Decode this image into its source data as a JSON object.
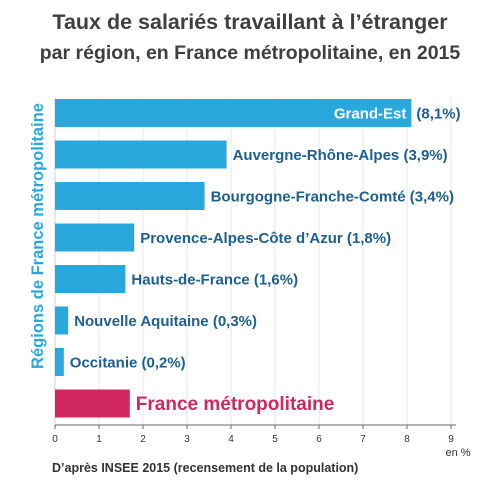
{
  "title": "Taux de salariés travaillant à l’étranger",
  "subtitle": "par région, en France métropolitaine, en 2015",
  "source": "D’après INSEE 2015 (recensement de la population)",
  "colors": {
    "bar": "#29a8dd",
    "highlight": "#d0285e",
    "label": "#1d5f8f",
    "grid": "#e4e4e4"
  },
  "chart_data": {
    "type": "bar",
    "orientation": "horizontal",
    "title": "Taux de salariés travaillant à l’étranger",
    "subtitle": "par région, en France métropolitaine, en 2015",
    "ylabel": "Régions de France métropolitaine",
    "xlabel": "en %",
    "xlim": [
      0,
      9
    ],
    "xticks": [
      "0",
      "1",
      "2",
      "3",
      "4",
      "5",
      "6",
      "7",
      "8",
      "9"
    ],
    "grid": true,
    "categories": [
      "Grand-Est",
      "Auvergne-Rhône-Alpes",
      "Bourgogne-Franche-Comté",
      "Provence-Alpes-Côte d’Azur",
      "Hauts-de-France",
      "Nouvelle Aquitaine",
      "Occitanie",
      "France métropolitaine"
    ],
    "values": [
      8.1,
      3.9,
      3.4,
      1.8,
      1.6,
      0.3,
      0.2,
      1.7
    ],
    "bar_labels": [
      "Grand-Est (8,1%)",
      "Auvergne-Rhône-Alpes (3,9%)",
      "Bourgogne-Franche-Comté (3,4%)",
      "Provence-Alpes-Côte d’Azur (1,8%)",
      "Hauts-de-France (1,6%)",
      "Nouvelle Aquitaine (0,3%)",
      "Occitanie (0,2%)",
      "France métropolitaine"
    ],
    "highlight_category": "France métropolitaine"
  }
}
